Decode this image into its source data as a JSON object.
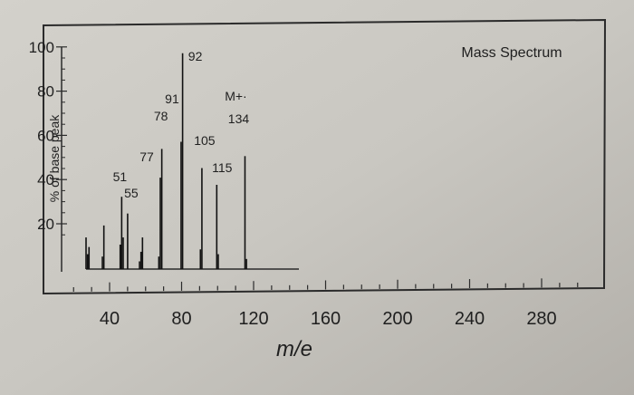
{
  "chart_data": {
    "type": "bar",
    "title": "Mass Spectrum",
    "xlabel": "m/e",
    "ylabel": "% of base peak",
    "xlim": [
      25,
      300
    ],
    "ylim": [
      10,
      105
    ],
    "x_ticks": [
      40,
      80,
      120,
      160,
      200,
      240,
      280
    ],
    "y_ticks": [
      20,
      40,
      60,
      80,
      100
    ],
    "grid": false,
    "peaks": [
      {
        "x": 27,
        "y": 23
      },
      {
        "x": 28,
        "y": 16
      },
      {
        "x": 29,
        "y": 19
      },
      {
        "x": 38,
        "y": 15
      },
      {
        "x": 39,
        "y": 28
      },
      {
        "x": 50,
        "y": 20
      },
      {
        "x": 51,
        "y": 40
      },
      {
        "x": 52,
        "y": 23
      },
      {
        "x": 55,
        "y": 33
      },
      {
        "x": 63,
        "y": 13
      },
      {
        "x": 64,
        "y": 17
      },
      {
        "x": 65,
        "y": 23
      },
      {
        "x": 76,
        "y": 15
      },
      {
        "x": 77,
        "y": 48
      },
      {
        "x": 78,
        "y": 60
      },
      {
        "x": 91,
        "y": 63
      },
      {
        "x": 92,
        "y": 100
      },
      {
        "x": 104,
        "y": 18
      },
      {
        "x": 105,
        "y": 52
      },
      {
        "x": 115,
        "y": 45
      },
      {
        "x": 116,
        "y": 16
      },
      {
        "x": 134,
        "y": 57
      },
      {
        "x": 135,
        "y": 14
      }
    ],
    "annotations": [
      {
        "text": "92",
        "x": 92
      },
      {
        "text": "91",
        "x": 91
      },
      {
        "text": "78",
        "x": 78
      },
      {
        "text": "77",
        "x": 77
      },
      {
        "text": "105",
        "x": 105
      },
      {
        "text": "115",
        "x": 115
      },
      {
        "text": "51",
        "x": 51
      },
      {
        "text": "55",
        "x": 55
      },
      {
        "text": "M+·",
        "x": 134
      },
      {
        "text": "134",
        "x": 134
      }
    ]
  }
}
